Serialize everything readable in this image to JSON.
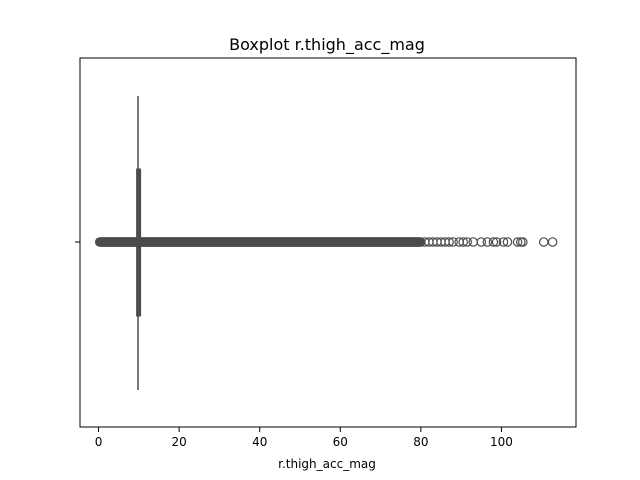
{
  "chart_data": {
    "type": "boxplot",
    "orientation": "horizontal",
    "title": "Boxplot r.thigh_acc_mag",
    "xlabel": "r.thigh_acc_mag",
    "ylabel": "",
    "xlim": [
      -4.6,
      118.5
    ],
    "xticks": [
      0,
      20,
      40,
      60,
      80,
      100
    ],
    "xtick_labels": [
      "0",
      "20",
      "40",
      "60",
      "80",
      "100"
    ],
    "grid": false,
    "box": {
      "whisker_low": 9.6,
      "q1": 9.7,
      "median": 9.8,
      "q3": 9.9,
      "whisker_high": 10.0
    },
    "outliers_dense_range": [
      0.3,
      80
    ],
    "outliers": [
      81,
      82,
      83,
      84,
      85,
      86,
      87,
      88,
      89.5,
      90.5,
      91.5,
      93,
      95,
      96.5,
      98,
      98.8,
      100.5,
      101.5,
      104,
      104.8,
      105.3,
      110.5,
      112.7
    ],
    "colors": {
      "box": "#4c4c4c",
      "frame": "#000000"
    }
  }
}
